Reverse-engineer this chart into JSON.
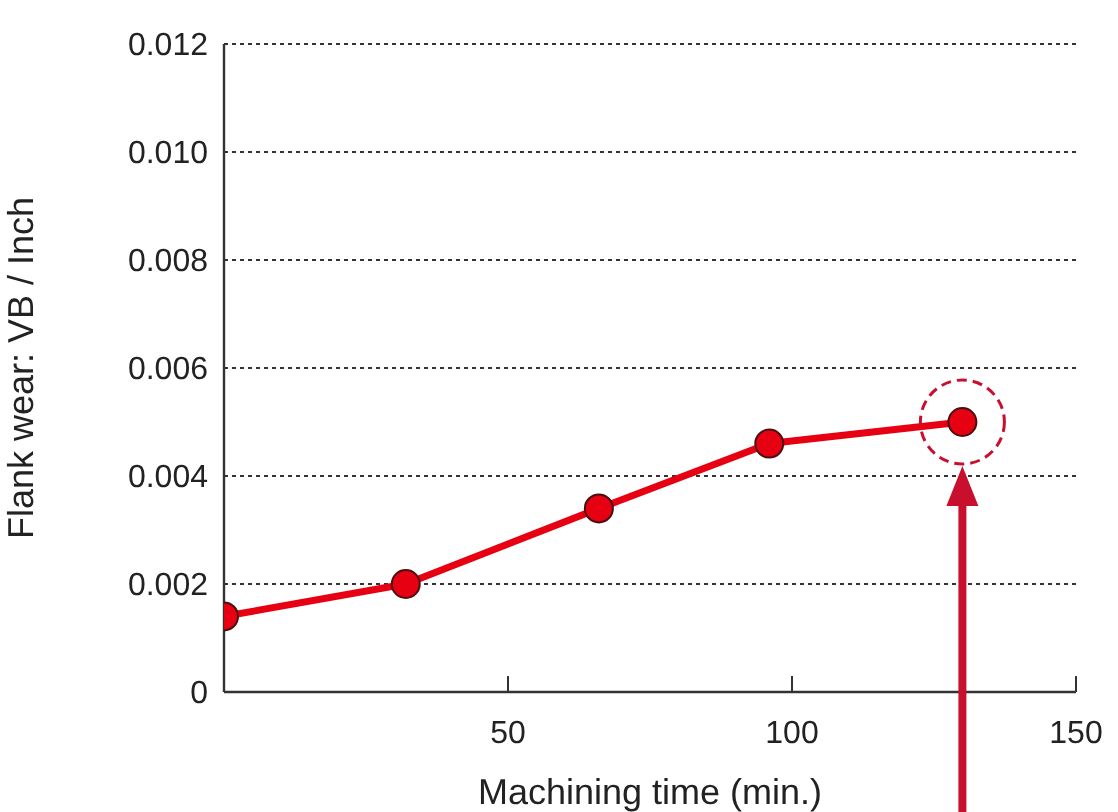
{
  "chart_data": {
    "type": "line",
    "xlabel": "Machining time (min.)",
    "ylabel": "Flank wear: VB / Inch",
    "x": [
      0,
      32,
      66,
      96,
      130
    ],
    "series": [
      {
        "color": "#e60012",
        "values": [
          0.0014,
          0.002,
          0.0034,
          0.0046,
          0.005
        ]
      }
    ],
    "xlim": [
      0,
      150
    ],
    "xticks": [
      50,
      100,
      150
    ],
    "ylim": [
      0,
      0.012
    ],
    "yticks": [
      0,
      0.002,
      0.004,
      0.006,
      0.008,
      {
        "value": 0.01,
        "label": "0.010"
      },
      0.012
    ],
    "grid": "y",
    "marker": "circle",
    "line_style": "solid"
  }
}
